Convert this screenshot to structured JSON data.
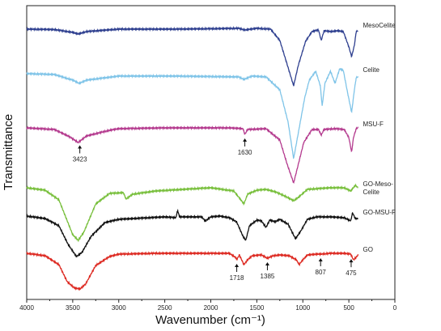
{
  "chart_data": {
    "type": "line",
    "title": "",
    "xlabel": "Wavenumber (cm⁻¹)",
    "ylabel": "Transmittance",
    "xlim": [
      4000,
      0
    ],
    "x_ticks": [
      4000,
      3500,
      3000,
      2500,
      2000,
      1500,
      1000,
      500,
      0
    ],
    "grid": false,
    "y_ticks_shown": false,
    "series": [
      {
        "name": "MesoCelite",
        "color": "#2e3f8f",
        "offset": 0,
        "points": [
          [
            4000,
            0
          ],
          [
            3700,
            -0.5
          ],
          [
            3500,
            -4
          ],
          [
            3440,
            -6
          ],
          [
            3350,
            -3
          ],
          [
            3000,
            0
          ],
          [
            2400,
            0
          ],
          [
            2000,
            0.5
          ],
          [
            1700,
            1
          ],
          [
            1630,
            -1
          ],
          [
            1500,
            1
          ],
          [
            1350,
            0
          ],
          [
            1250,
            -14
          ],
          [
            1180,
            -40
          ],
          [
            1100,
            -70
          ],
          [
            1050,
            -45
          ],
          [
            970,
            -15
          ],
          [
            900,
            -3
          ],
          [
            830,
            -1
          ],
          [
            800,
            -14
          ],
          [
            770,
            -2
          ],
          [
            700,
            -3
          ],
          [
            620,
            -2
          ],
          [
            560,
            -3
          ],
          [
            500,
            -22
          ],
          [
            470,
            -34
          ],
          [
            440,
            -20
          ],
          [
            420,
            -3
          ],
          [
            400,
            -2
          ]
        ]
      },
      {
        "name": "Celite",
        "color": "#7fc4e8",
        "offset": 0,
        "points": [
          [
            4000,
            0
          ],
          [
            3700,
            -1
          ],
          [
            3500,
            -8
          ],
          [
            3430,
            -12
          ],
          [
            3350,
            -8
          ],
          [
            3000,
            -3
          ],
          [
            2400,
            -3
          ],
          [
            1700,
            -4
          ],
          [
            1640,
            -7
          ],
          [
            1550,
            -3
          ],
          [
            1400,
            -4
          ],
          [
            1250,
            -20
          ],
          [
            1160,
            -60
          ],
          [
            1100,
            -105
          ],
          [
            1060,
            -80
          ],
          [
            980,
            -30
          ],
          [
            930,
            -8
          ],
          [
            860,
            3
          ],
          [
            810,
            -15
          ],
          [
            790,
            -40
          ],
          [
            760,
            -12
          ],
          [
            700,
            3
          ],
          [
            650,
            -12
          ],
          [
            600,
            6
          ],
          [
            560,
            4
          ],
          [
            520,
            -20
          ],
          [
            470,
            -48
          ],
          [
            440,
            -20
          ],
          [
            420,
            -5
          ],
          [
            400,
            -4
          ]
        ]
      },
      {
        "name": "MSU-F",
        "color": "#b43a8e",
        "offset": 0,
        "points": [
          [
            4000,
            0
          ],
          [
            3700,
            -2
          ],
          [
            3550,
            -10
          ],
          [
            3440,
            -18
          ],
          [
            3350,
            -10
          ],
          [
            3100,
            -3
          ],
          [
            3000,
            -1
          ],
          [
            2500,
            0
          ],
          [
            1800,
            0
          ],
          [
            1650,
            -1
          ],
          [
            1630,
            -8
          ],
          [
            1600,
            -2
          ],
          [
            1400,
            -1
          ],
          [
            1250,
            -15
          ],
          [
            1170,
            -45
          ],
          [
            1100,
            -68
          ],
          [
            1060,
            -50
          ],
          [
            990,
            -18
          ],
          [
            900,
            -2
          ],
          [
            830,
            -2
          ],
          [
            800,
            -9
          ],
          [
            770,
            -2
          ],
          [
            650,
            -1
          ],
          [
            550,
            -2
          ],
          [
            500,
            -12
          ],
          [
            470,
            -30
          ],
          [
            450,
            -12
          ],
          [
            420,
            -1
          ],
          [
            400,
            0
          ]
        ]
      },
      {
        "name": "GO-Meso-Celite",
        "color": "#78bf3c",
        "offset": 0,
        "points": [
          [
            4000,
            0
          ],
          [
            3800,
            -3
          ],
          [
            3650,
            -15
          ],
          [
            3500,
            -58
          ],
          [
            3440,
            -65
          ],
          [
            3380,
            -55
          ],
          [
            3250,
            -20
          ],
          [
            3100,
            -7
          ],
          [
            2950,
            -6
          ],
          [
            2920,
            -14
          ],
          [
            2850,
            -8
          ],
          [
            2600,
            -4
          ],
          [
            2000,
            0
          ],
          [
            1750,
            -4
          ],
          [
            1680,
            -14
          ],
          [
            1640,
            -20
          ],
          [
            1600,
            -8
          ],
          [
            1500,
            -3
          ],
          [
            1400,
            -2
          ],
          [
            1300,
            -5
          ],
          [
            1200,
            -10
          ],
          [
            1100,
            -16
          ],
          [
            1050,
            -12
          ],
          [
            950,
            -2
          ],
          [
            700,
            0
          ],
          [
            550,
            0
          ],
          [
            480,
            -4
          ],
          [
            430,
            3
          ],
          [
            400,
            0
          ]
        ]
      },
      {
        "name": "GO-MSU-F",
        "color": "#111111",
        "offset": 0,
        "points": [
          [
            4000,
            0
          ],
          [
            3800,
            -3
          ],
          [
            3650,
            -12
          ],
          [
            3550,
            -35
          ],
          [
            3460,
            -50
          ],
          [
            3400,
            -45
          ],
          [
            3300,
            -25
          ],
          [
            3150,
            -8
          ],
          [
            3000,
            -4
          ],
          [
            2500,
            -1
          ],
          [
            2380,
            -2
          ],
          [
            2360,
            7
          ],
          [
            2340,
            -1
          ],
          [
            2100,
            -1
          ],
          [
            2060,
            -6
          ],
          [
            2000,
            -1
          ],
          [
            1900,
            0
          ],
          [
            1800,
            -2
          ],
          [
            1720,
            -7
          ],
          [
            1650,
            -25
          ],
          [
            1620,
            -30
          ],
          [
            1580,
            -12
          ],
          [
            1500,
            -5
          ],
          [
            1450,
            -6
          ],
          [
            1400,
            -14
          ],
          [
            1360,
            -5
          ],
          [
            1300,
            -7
          ],
          [
            1250,
            -4
          ],
          [
            1160,
            -10
          ],
          [
            1080,
            -28
          ],
          [
            1020,
            -18
          ],
          [
            950,
            -4
          ],
          [
            850,
            -1
          ],
          [
            700,
            -1
          ],
          [
            550,
            -2
          ],
          [
            480,
            -6
          ],
          [
            460,
            4
          ],
          [
            430,
            -3
          ],
          [
            400,
            -3
          ]
        ]
      },
      {
        "name": "GO",
        "color": "#dd2a22",
        "offset": 0,
        "points": [
          [
            4000,
            0
          ],
          [
            3800,
            -3
          ],
          [
            3650,
            -14
          ],
          [
            3560,
            -35
          ],
          [
            3480,
            -43
          ],
          [
            3420,
            -44
          ],
          [
            3360,
            -38
          ],
          [
            3250,
            -15
          ],
          [
            3100,
            -4
          ],
          [
            3000,
            -1
          ],
          [
            2600,
            0
          ],
          [
            2000,
            0
          ],
          [
            1800,
            0
          ],
          [
            1730,
            -5
          ],
          [
            1718,
            -8
          ],
          [
            1690,
            -2
          ],
          [
            1640,
            -14
          ],
          [
            1600,
            -8
          ],
          [
            1550,
            -3
          ],
          [
            1450,
            -2
          ],
          [
            1385,
            -6
          ],
          [
            1320,
            -3
          ],
          [
            1250,
            -2
          ],
          [
            1150,
            -3
          ],
          [
            1070,
            -8
          ],
          [
            1040,
            -14
          ],
          [
            1000,
            -8
          ],
          [
            950,
            -2
          ],
          [
            850,
            -1
          ],
          [
            807,
            -1
          ],
          [
            700,
            0
          ],
          [
            550,
            0
          ],
          [
            480,
            -1
          ],
          [
            450,
            -8
          ],
          [
            430,
            -6
          ],
          [
            400,
            -2
          ]
        ]
      }
    ],
    "annotations": [
      {
        "label": "3423",
        "x": 3423,
        "on_series": "MSU-F"
      },
      {
        "label": "1630",
        "x": 1630,
        "on_series": "MSU-F"
      },
      {
        "label": "1718",
        "x": 1718,
        "on_series": "GO"
      },
      {
        "label": "1385",
        "x": 1385,
        "on_series": "GO"
      },
      {
        "label": "807",
        "x": 807,
        "on_series": "GO"
      },
      {
        "label": "475",
        "x": 475,
        "on_series": "GO"
      }
    ]
  }
}
